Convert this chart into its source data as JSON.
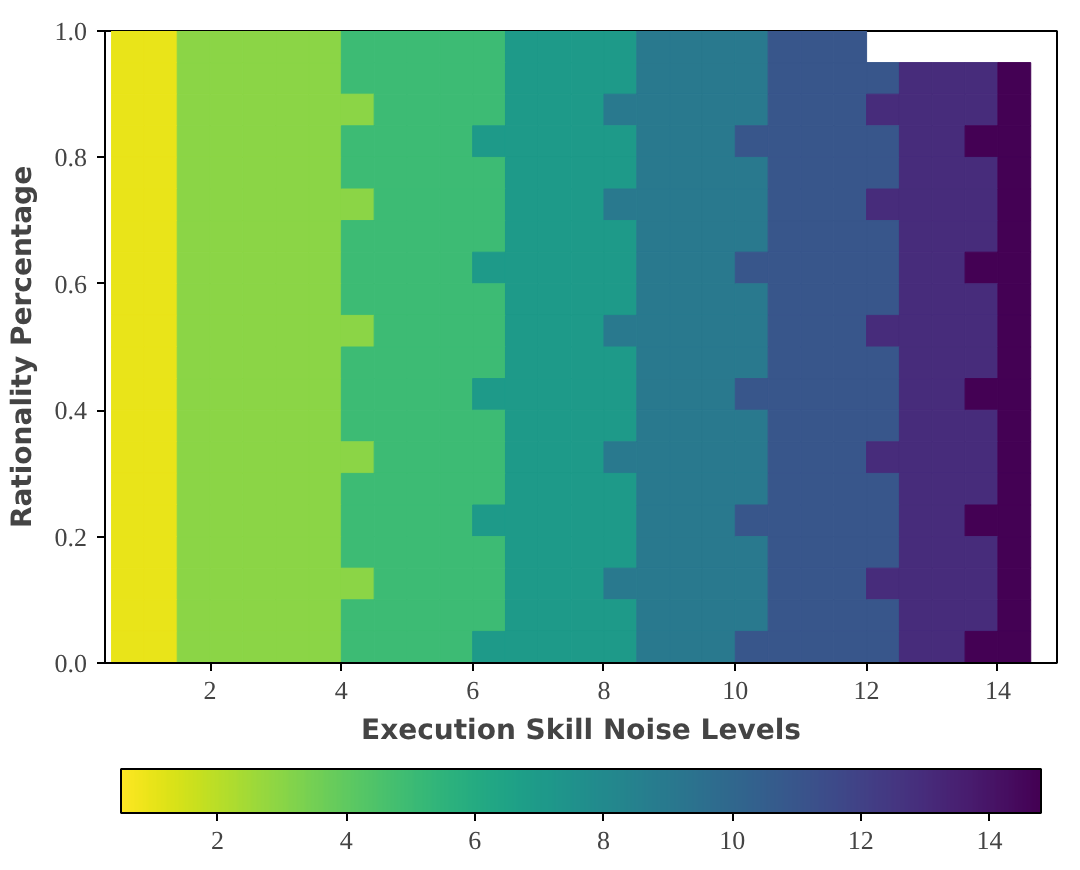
{
  "chart_data": {
    "type": "heatmap",
    "xlabel": "Execution Skill Noise Levels",
    "ylabel": "Rationality Percentage",
    "x": [
      0.75,
      1.25,
      1.75,
      2.25,
      2.75,
      3.25,
      3.75,
      4.25,
      4.75,
      5.25,
      5.75,
      6.25,
      6.75,
      7.25,
      7.75,
      8.25,
      8.75,
      9.25,
      9.75,
      10.25,
      10.75,
      11.25,
      11.75,
      12.25,
      12.75,
      13.25,
      13.75,
      14.25
    ],
    "y": [
      0.975,
      0.925,
      0.875,
      0.825,
      0.775,
      0.725,
      0.675,
      0.625,
      0.575,
      0.525,
      0.475,
      0.425,
      0.375,
      0.325,
      0.275,
      0.225,
      0.175,
      0.125,
      0.075,
      0.025
    ],
    "cells": [
      [
        1,
        1,
        3,
        3,
        3,
        3,
        3,
        5,
        5,
        5,
        5,
        5,
        7,
        7,
        7,
        7,
        9,
        9,
        9,
        9,
        11,
        11,
        11,
        null,
        null,
        null,
        null,
        null
      ],
      [
        1,
        1,
        3,
        3,
        3,
        3,
        3,
        5,
        5,
        5,
        5,
        5,
        7,
        7,
        7,
        7,
        9,
        9,
        9,
        9,
        11,
        11,
        11,
        11,
        13,
        13,
        13,
        14.8
      ],
      [
        1,
        1,
        3,
        3,
        3,
        3,
        3,
        3,
        5,
        5,
        5,
        5,
        7,
        7,
        7,
        9,
        9,
        9,
        9,
        9,
        11,
        11,
        11,
        13,
        13,
        13,
        13,
        14.8
      ],
      [
        1,
        1,
        3,
        3,
        3,
        3,
        3,
        5,
        5,
        5,
        5,
        7,
        7,
        7,
        7,
        7,
        9,
        9,
        9,
        11,
        11,
        11,
        11,
        11,
        13,
        13,
        14.8,
        14.8
      ],
      [
        1,
        1,
        3,
        3,
        3,
        3,
        3,
        5,
        5,
        5,
        5,
        5,
        7,
        7,
        7,
        7,
        9,
        9,
        9,
        9,
        11,
        11,
        11,
        11,
        13,
        13,
        13,
        14.8
      ],
      [
        1,
        1,
        3,
        3,
        3,
        3,
        3,
        3,
        5,
        5,
        5,
        5,
        7,
        7,
        7,
        9,
        9,
        9,
        9,
        9,
        11,
        11,
        11,
        13,
        13,
        13,
        13,
        14.8
      ],
      [
        1,
        1,
        3,
        3,
        3,
        3,
        3,
        5,
        5,
        5,
        5,
        5,
        7,
        7,
        7,
        7,
        9,
        9,
        9,
        9,
        11,
        11,
        11,
        11,
        13,
        13,
        13,
        14.8
      ],
      [
        1,
        1,
        3,
        3,
        3,
        3,
        3,
        5,
        5,
        5,
        5,
        7,
        7,
        7,
        7,
        7,
        9,
        9,
        9,
        11,
        11,
        11,
        11,
        11,
        13,
        13,
        14.8,
        14.8
      ],
      [
        1,
        1,
        3,
        3,
        3,
        3,
        3,
        5,
        5,
        5,
        5,
        5,
        7,
        7,
        7,
        7,
        9,
        9,
        9,
        9,
        11,
        11,
        11,
        11,
        13,
        13,
        13,
        14.8
      ],
      [
        1,
        1,
        3,
        3,
        3,
        3,
        3,
        3,
        5,
        5,
        5,
        5,
        7,
        7,
        7,
        9,
        9,
        9,
        9,
        9,
        11,
        11,
        11,
        13,
        13,
        13,
        13,
        14.8
      ],
      [
        1,
        1,
        3,
        3,
        3,
        3,
        3,
        5,
        5,
        5,
        5,
        5,
        7,
        7,
        7,
        7,
        9,
        9,
        9,
        9,
        11,
        11,
        11,
        11,
        13,
        13,
        13,
        14.8
      ],
      [
        1,
        1,
        3,
        3,
        3,
        3,
        3,
        5,
        5,
        5,
        5,
        7,
        7,
        7,
        7,
        7,
        9,
        9,
        9,
        11,
        11,
        11,
        11,
        11,
        13,
        13,
        14.8,
        14.8
      ],
      [
        1,
        1,
        3,
        3,
        3,
        3,
        3,
        5,
        5,
        5,
        5,
        5,
        7,
        7,
        7,
        7,
        9,
        9,
        9,
        9,
        11,
        11,
        11,
        11,
        13,
        13,
        13,
        14.8
      ],
      [
        1,
        1,
        3,
        3,
        3,
        3,
        3,
        3,
        5,
        5,
        5,
        5,
        7,
        7,
        7,
        9,
        9,
        9,
        9,
        9,
        11,
        11,
        11,
        13,
        13,
        13,
        13,
        14.8
      ],
      [
        1,
        1,
        3,
        3,
        3,
        3,
        3,
        5,
        5,
        5,
        5,
        5,
        7,
        7,
        7,
        7,
        9,
        9,
        9,
        9,
        11,
        11,
        11,
        11,
        13,
        13,
        13,
        14.8
      ],
      [
        1,
        1,
        3,
        3,
        3,
        3,
        3,
        5,
        5,
        5,
        5,
        7,
        7,
        7,
        7,
        7,
        9,
        9,
        9,
        11,
        11,
        11,
        11,
        11,
        13,
        13,
        14.8,
        14.8
      ],
      [
        1,
        1,
        3,
        3,
        3,
        3,
        3,
        5,
        5,
        5,
        5,
        5,
        7,
        7,
        7,
        7,
        9,
        9,
        9,
        9,
        11,
        11,
        11,
        11,
        13,
        13,
        13,
        14.8
      ],
      [
        1,
        1,
        3,
        3,
        3,
        3,
        3,
        3,
        5,
        5,
        5,
        5,
        7,
        7,
        7,
        9,
        9,
        9,
        9,
        9,
        11,
        11,
        11,
        13,
        13,
        13,
        13,
        14.8
      ],
      [
        1,
        1,
        3,
        3,
        3,
        3,
        3,
        5,
        5,
        5,
        5,
        5,
        7,
        7,
        7,
        7,
        9,
        9,
        9,
        9,
        11,
        11,
        11,
        11,
        13,
        13,
        13,
        14.8
      ],
      [
        1,
        1,
        3,
        3,
        3,
        3,
        3,
        5,
        5,
        5,
        5,
        7,
        7,
        7,
        7,
        7,
        9,
        9,
        9,
        11,
        11,
        11,
        11,
        11,
        13,
        13,
        14.8,
        14.8
      ]
    ],
    "xlim": [
      0.4,
      14.9
    ],
    "ylim": [
      0,
      1
    ],
    "xticks": [
      2,
      4,
      6,
      8,
      10,
      12,
      14
    ],
    "yticks": [
      {
        "value": 0,
        "label": "0.0"
      },
      {
        "value": 0.2,
        "label": "0.2"
      },
      {
        "value": 0.4,
        "label": "0.4"
      },
      {
        "value": 0.6,
        "label": "0.6"
      },
      {
        "value": 0.8,
        "label": "0.8"
      },
      {
        "value": 1,
        "label": "1.0"
      }
    ],
    "clim": [
      0.5,
      14.8
    ],
    "cticks": [
      2,
      4,
      6,
      8,
      10,
      12,
      14
    ]
  }
}
